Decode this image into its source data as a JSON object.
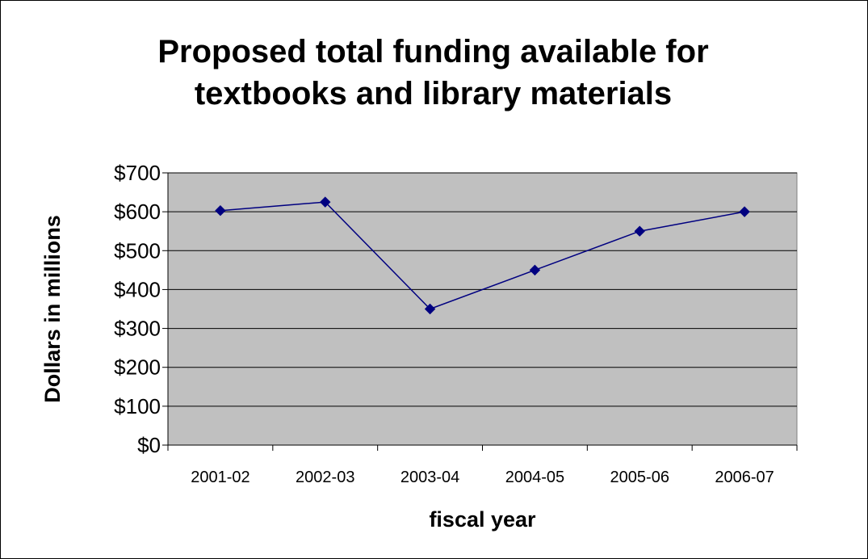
{
  "chart_data": {
    "type": "line",
    "title_lines": [
      "Proposed total funding available for",
      "textbooks and library materials"
    ],
    "xlabel": "fiscal year",
    "ylabel": "Dollars in millions",
    "categories": [
      "2001-02",
      "2002-03",
      "2003-04",
      "2004-05",
      "2005-06",
      "2006-07"
    ],
    "series": [
      {
        "values": [
          603,
          625,
          350,
          450,
          550,
          600
        ]
      }
    ],
    "ylim": [
      0,
      700
    ],
    "yticks": [
      0,
      100,
      200,
      300,
      400,
      500,
      600,
      700
    ],
    "ytick_labels": [
      "$0",
      "$100",
      "$200",
      "$300",
      "$400",
      "$500",
      "$600",
      "$700"
    ],
    "grid": true,
    "legend": "none",
    "colors": {
      "plot_background": "#c0c0c0",
      "line": "#000080",
      "marker": "#000080",
      "gridline": "#000000"
    }
  }
}
